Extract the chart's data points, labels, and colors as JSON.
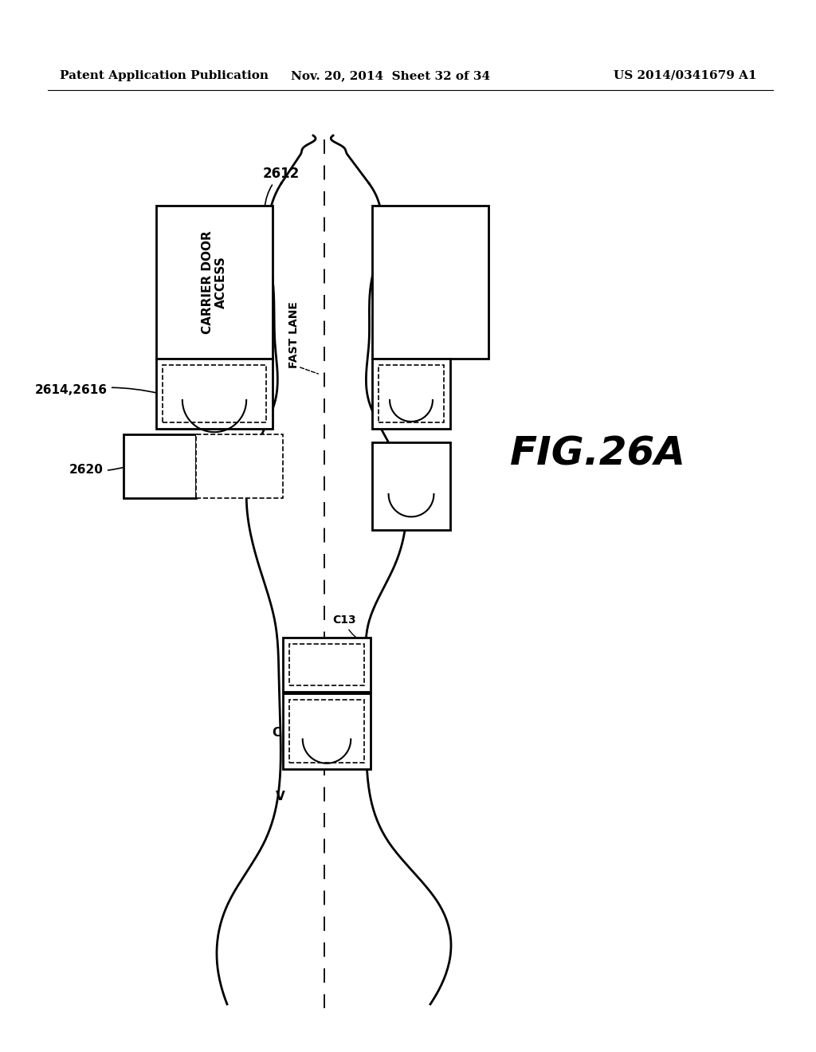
{
  "bg_color": "#ffffff",
  "header_left": "Patent Application Publication",
  "header_mid": "Nov. 20, 2014  Sheet 32 of 34",
  "header_right": "US 2014/0341679 A1",
  "fig_label": "FIG.26A",
  "label_2612": "2612",
  "label_2614_2616": "2614,2616",
  "label_2620": "2620",
  "label_fast_lane": "FAST LANE",
  "label_carrier_door": "CARRIER DOOR\nACCESS",
  "label_C13": "C13",
  "label_C": "C",
  "label_V": "V",
  "road_left_color": "#000000",
  "road_fill": "#ffffff",
  "lw_main": 2.0,
  "lw_dashed": 1.2
}
